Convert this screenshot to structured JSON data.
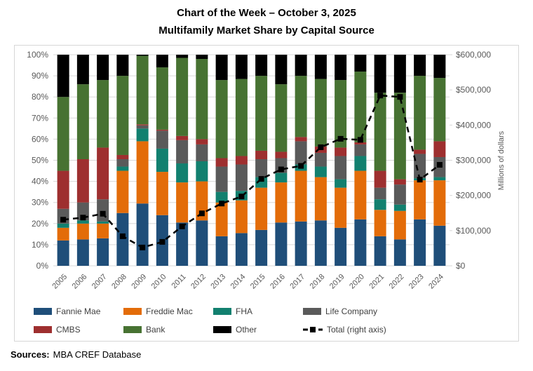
{
  "title": {
    "line1": "Chart of the Week – October 3, 2025",
    "line2": "Multifamily Market Share by Capital Source"
  },
  "footer": {
    "label": "Sources:",
    "text": "MBA CREF Database"
  },
  "chart_data": {
    "type": "bar",
    "subtype": "stacked-100pct-with-total-line",
    "categories": [
      2005,
      2006,
      2007,
      2008,
      2009,
      2010,
      2011,
      2012,
      2013,
      2014,
      2015,
      2016,
      2017,
      2018,
      2019,
      2020,
      2021,
      2022,
      2023,
      2024
    ],
    "series": [
      {
        "name": "Fannie Mae",
        "color": "#1F4E79",
        "values": [
          12,
          12.5,
          13,
          25,
          29.5,
          24,
          20.5,
          21.5,
          14,
          15.5,
          17,
          20.5,
          21,
          21.5,
          18,
          22,
          14,
          12.5,
          22,
          19
        ]
      },
      {
        "name": "Freddie Mac",
        "color": "#E36C09",
        "values": [
          6,
          7.5,
          7,
          20,
          29.5,
          20.5,
          19,
          18.5,
          16,
          15.5,
          20,
          19,
          24,
          20.5,
          19,
          23,
          12.5,
          13.5,
          18.5,
          21.5
        ]
      },
      {
        "name": "FHA",
        "color": "#12806F",
        "values": [
          2,
          1.5,
          1,
          2,
          6,
          11,
          9,
          9.5,
          5,
          4.5,
          5,
          4.5,
          3,
          5,
          4,
          7,
          5,
          3,
          1,
          1.5
        ]
      },
      {
        "name": "Life Company",
        "color": "#5A5A5A",
        "values": [
          7,
          8.5,
          10.5,
          3.5,
          1.5,
          8.5,
          11,
          8,
          12,
          12.5,
          8.5,
          7,
          11,
          6.5,
          11,
          5.5,
          5.5,
          9.5,
          11.5,
          9.5
        ]
      },
      {
        "name": "CMBS",
        "color": "#9E2F2F",
        "values": [
          18,
          20.5,
          24.5,
          2,
          0.5,
          0.5,
          2,
          2.5,
          4,
          4,
          4,
          3,
          2,
          3,
          4,
          1,
          8,
          2.5,
          2,
          7.5
        ]
      },
      {
        "name": "Bank",
        "color": "#477232",
        "values": [
          35,
          35.5,
          32,
          37.5,
          32.5,
          29.5,
          37,
          38,
          37,
          36.5,
          35.5,
          32,
          29,
          32,
          32,
          33.5,
          37,
          41,
          35,
          30
        ]
      },
      {
        "name": "Other",
        "color": "#000000",
        "values": [
          20,
          14,
          12,
          10,
          0.5,
          6,
          1.5,
          2,
          12,
          11.5,
          10,
          14,
          10,
          11.5,
          12,
          8,
          18,
          18,
          10,
          11
        ]
      }
    ],
    "line_series": {
      "name": "Total (right axis)",
      "color": "#000000",
      "style": "dashed with square markers",
      "values": [
        131000,
        137000,
        148000,
        84000,
        52000,
        68000,
        112000,
        149000,
        177000,
        197000,
        247000,
        274000,
        284000,
        337000,
        361000,
        358000,
        484000,
        480000,
        245000,
        287000
      ]
    },
    "left_axis": {
      "min": 0,
      "max": 100,
      "ticks": [
        "0%",
        "10%",
        "20%",
        "30%",
        "40%",
        "50%",
        "60%",
        "70%",
        "80%",
        "90%",
        "100%"
      ]
    },
    "right_axis": {
      "min": 0,
      "max": 600000,
      "label": "Millions of dollars",
      "ticks": [
        "$0",
        "$100,000",
        "$200,000",
        "$300,000",
        "$400,000",
        "$500,000",
        "$600,000"
      ]
    },
    "grid": "horizontal light gray",
    "legend_position": "bottom inside border, two rows",
    "colors": {
      "gridline": "#D9D9D9",
      "axis_text": "#595959"
    }
  }
}
